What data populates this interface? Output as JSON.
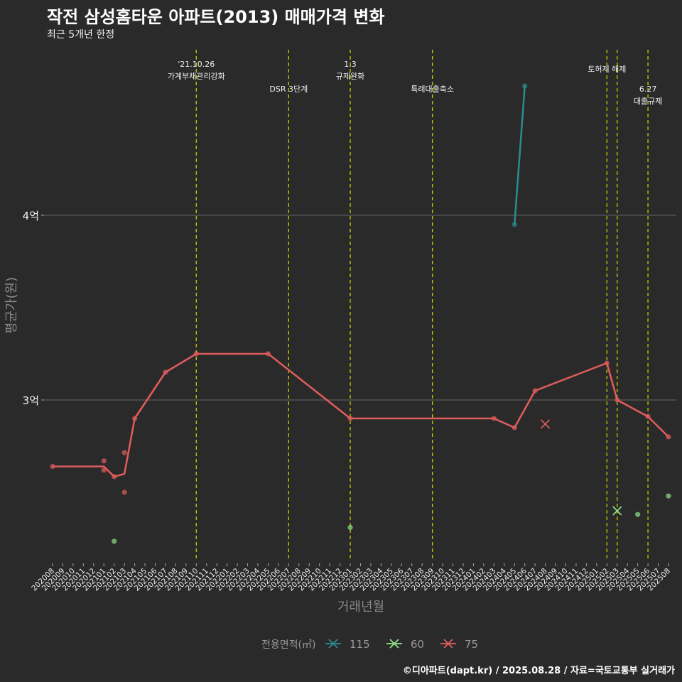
{
  "title": "작전 삼성홈타운 아파트(2013) 매매가격 변화",
  "subtitle": "최근 5개년 한정",
  "caption": "©디아파트(dapt.kr) / 2025.08.28 / 자료=국토교통부 실거래가",
  "chart_data": {
    "type": "line",
    "xlabel": "거래년월",
    "ylabel": "평균가(원)",
    "categories": [
      "202008",
      "202009",
      "202010",
      "202011",
      "202012",
      "202101",
      "202102",
      "202103",
      "202104",
      "202105",
      "202106",
      "202107",
      "202108",
      "202109",
      "202110",
      "202111",
      "202112",
      "202201",
      "202202",
      "202203",
      "202204",
      "202205",
      "202206",
      "202207",
      "202208",
      "202209",
      "202210",
      "202211",
      "202212",
      "202301",
      "202302",
      "202303",
      "202304",
      "202305",
      "202306",
      "202307",
      "202308",
      "202309",
      "202310",
      "202311",
      "202312",
      "202401",
      "202402",
      "202403",
      "202404",
      "202405",
      "202406",
      "202407",
      "202408",
      "202409",
      "202410",
      "202411",
      "202412",
      "202501",
      "202502",
      "202503",
      "202504",
      "202505",
      "202506",
      "202507",
      "202508"
    ],
    "y_ticks": [
      {
        "value": 3,
        "label": "3억"
      },
      {
        "value": 4,
        "label": "4억"
      }
    ],
    "ylim": [
      2.1,
      4.9
    ],
    "legend": {
      "title": "전용면적(㎡)",
      "position": "bottom",
      "entries": [
        "115",
        "60",
        "75"
      ]
    },
    "colors": {
      "115": "#2a8c8c",
      "60": "#8fe388",
      "75": "#e05c5c",
      "vline": "#c8c800"
    },
    "series": [
      {
        "name": "115",
        "line": [
          [
            "202405",
            3.95
          ],
          [
            "202406",
            4.7
          ]
        ],
        "points": [
          [
            "202405",
            3.95
          ],
          [
            "202406",
            4.7
          ]
        ],
        "cross": []
      },
      {
        "name": "60",
        "line": [],
        "points": [
          [
            "202102",
            2.235
          ],
          [
            "202301",
            2.31
          ],
          [
            "202505",
            2.38
          ],
          [
            "202508",
            2.48
          ]
        ],
        "cross": [
          [
            "202503",
            2.4
          ]
        ]
      },
      {
        "name": "75",
        "line": [
          [
            "202008",
            2.64
          ],
          [
            "202101",
            2.64
          ],
          [
            "202102",
            2.585
          ],
          [
            "202103",
            2.6
          ],
          [
            "202104",
            2.9
          ],
          [
            "202107",
            3.15
          ],
          [
            "202110",
            3.25
          ],
          [
            "202205",
            3.25
          ],
          [
            "202301",
            2.9
          ],
          [
            "202403",
            2.9
          ],
          [
            "202405",
            2.85
          ],
          [
            "202407",
            3.05
          ],
          [
            "202502",
            3.2
          ],
          [
            "202503",
            3.0
          ],
          [
            "202506",
            2.91
          ],
          [
            "202508",
            2.8
          ]
        ],
        "points": [
          [
            "202008",
            2.64
          ],
          [
            "202101",
            2.67
          ],
          [
            "202101",
            2.62
          ],
          [
            "202102",
            2.585
          ],
          [
            "202103",
            2.715
          ],
          [
            "202103",
            2.5
          ],
          [
            "202104",
            2.9
          ],
          [
            "202107",
            3.15
          ],
          [
            "202110",
            3.25
          ],
          [
            "202205",
            3.25
          ],
          [
            "202301",
            2.9
          ],
          [
            "202403",
            2.9
          ],
          [
            "202405",
            2.85
          ],
          [
            "202407",
            3.05
          ],
          [
            "202502",
            3.2
          ],
          [
            "202503",
            3.0
          ],
          [
            "202506",
            2.91
          ],
          [
            "202508",
            2.8
          ]
        ],
        "cross": [
          [
            "202408",
            2.87
          ]
        ]
      }
    ],
    "events": [
      {
        "month": "202110",
        "lines": [
          "'21.10.26",
          "가계부채관리강화"
        ],
        "row": 0
      },
      {
        "month": "202207",
        "lines": [
          "DSR 3단계"
        ],
        "row": 2
      },
      {
        "month": "202301",
        "lines": [
          "1.3",
          "규제완화"
        ],
        "row": 0
      },
      {
        "month": "202309",
        "lines": [
          "특례대출축소"
        ],
        "row": 2
      },
      {
        "month": "202502",
        "lines": [
          "토허제 해제"
        ],
        "row": 1
      },
      {
        "month": "202503",
        "lines": [],
        "row": 0
      },
      {
        "month": "202506",
        "lines": [
          "6.27",
          "대출규제"
        ],
        "row": 2
      }
    ]
  }
}
